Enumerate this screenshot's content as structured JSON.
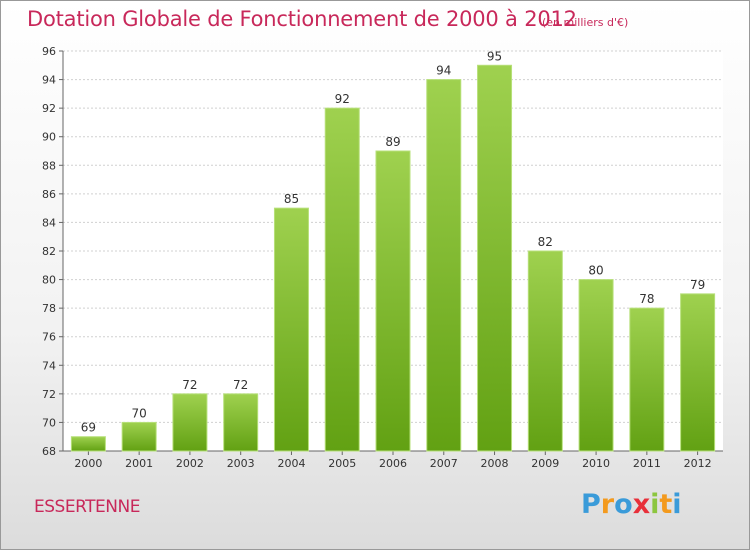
{
  "header": {
    "title": "Dotation Globale de Fonctionnement de 2000 à 2012",
    "subtitle": "(en milliers d'€)"
  },
  "footer": {
    "commune": "ESSERTENNE",
    "logo_parts": [
      "P",
      "r",
      "o",
      "x",
      "i",
      "t",
      "i"
    ]
  },
  "colors": {
    "title": "#c8285a",
    "bar_top": "#9fd14f",
    "bar_bottom": "#62a113"
  },
  "chart_data": {
    "type": "bar",
    "title": "Dotation Globale de Fonctionnement de 2000 à 2012",
    "subtitle": "(en milliers d'€)",
    "xlabel": "",
    "ylabel": "",
    "categories": [
      "2000",
      "2001",
      "2002",
      "2003",
      "2004",
      "2005",
      "2006",
      "2007",
      "2008",
      "2009",
      "2010",
      "2011",
      "2012"
    ],
    "values": [
      69,
      70,
      72,
      72,
      85,
      92,
      89,
      94,
      95,
      82,
      80,
      78,
      79
    ],
    "ylim": [
      68,
      96
    ],
    "yticks": [
      68,
      70,
      72,
      74,
      76,
      78,
      80,
      82,
      84,
      86,
      88,
      90,
      92,
      94,
      96
    ],
    "grid": true,
    "data_labels": true
  }
}
